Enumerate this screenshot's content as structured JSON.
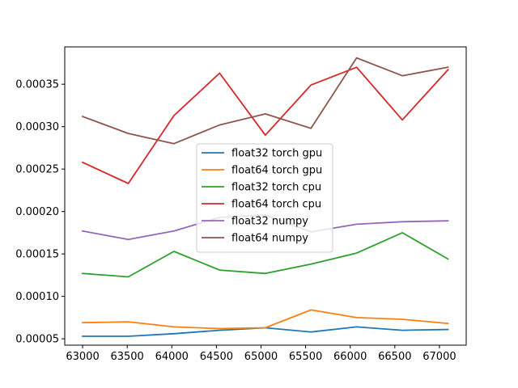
{
  "chart_data": {
    "type": "line",
    "title": "",
    "xlabel": "",
    "ylabel": "",
    "x": [
      63000,
      63512,
      64024,
      64536,
      65048,
      65560,
      66072,
      66584,
      67096
    ],
    "xlim": [
      62800,
      67300
    ],
    "ylim": [
      4.25e-05,
      0.000394
    ],
    "xticks": [
      63000,
      63500,
      64000,
      64500,
      65000,
      65500,
      66000,
      66500,
      67000
    ],
    "xtick_labels": [
      "63000",
      "63500",
      "64000",
      "64500",
      "65000",
      "65500",
      "66000",
      "66500",
      "67000"
    ],
    "yticks": [
      5e-05,
      0.0001,
      0.00015,
      0.0002,
      0.00025,
      0.0003,
      0.00035
    ],
    "ytick_labels": [
      "0.00005",
      "0.00010",
      "0.00015",
      "0.00020",
      "0.00025",
      "0.00030",
      "0.00035"
    ],
    "grid": false,
    "legend_position": "center",
    "series": [
      {
        "name": "float32 torch gpu",
        "color": "#1f77b4",
        "values": [
          5.3e-05,
          5.3e-05,
          5.6e-05,
          6e-05,
          6.3e-05,
          5.8e-05,
          6.4e-05,
          6e-05,
          6.1e-05
        ]
      },
      {
        "name": "float64 torch gpu",
        "color": "#ff7f0e",
        "values": [
          6.9e-05,
          7e-05,
          6.4e-05,
          6.2e-05,
          6.3e-05,
          8.4e-05,
          7.5e-05,
          7.3e-05,
          6.8e-05
        ]
      },
      {
        "name": "float32 torch cpu",
        "color": "#2ca02c",
        "values": [
          0.000127,
          0.000123,
          0.000153,
          0.000131,
          0.000127,
          0.000138,
          0.000151,
          0.000175,
          0.000144
        ]
      },
      {
        "name": "float64 torch cpu",
        "color": "#d62728",
        "values": [
          0.000258,
          0.000233,
          0.000313,
          0.000363,
          0.00029,
          0.000349,
          0.00037,
          0.000308,
          0.000367
        ]
      },
      {
        "name": "float32 numpy",
        "color": "#9467bd",
        "values": [
          0.000177,
          0.000167,
          0.000177,
          0.000193,
          0.000196,
          0.000176,
          0.000185,
          0.000188,
          0.000189
        ]
      },
      {
        "name": "float64 numpy",
        "color": "#8c564b",
        "values": [
          0.000312,
          0.000292,
          0.00028,
          0.000302,
          0.000315,
          0.000298,
          0.000381,
          0.00036,
          0.00037
        ]
      }
    ]
  }
}
